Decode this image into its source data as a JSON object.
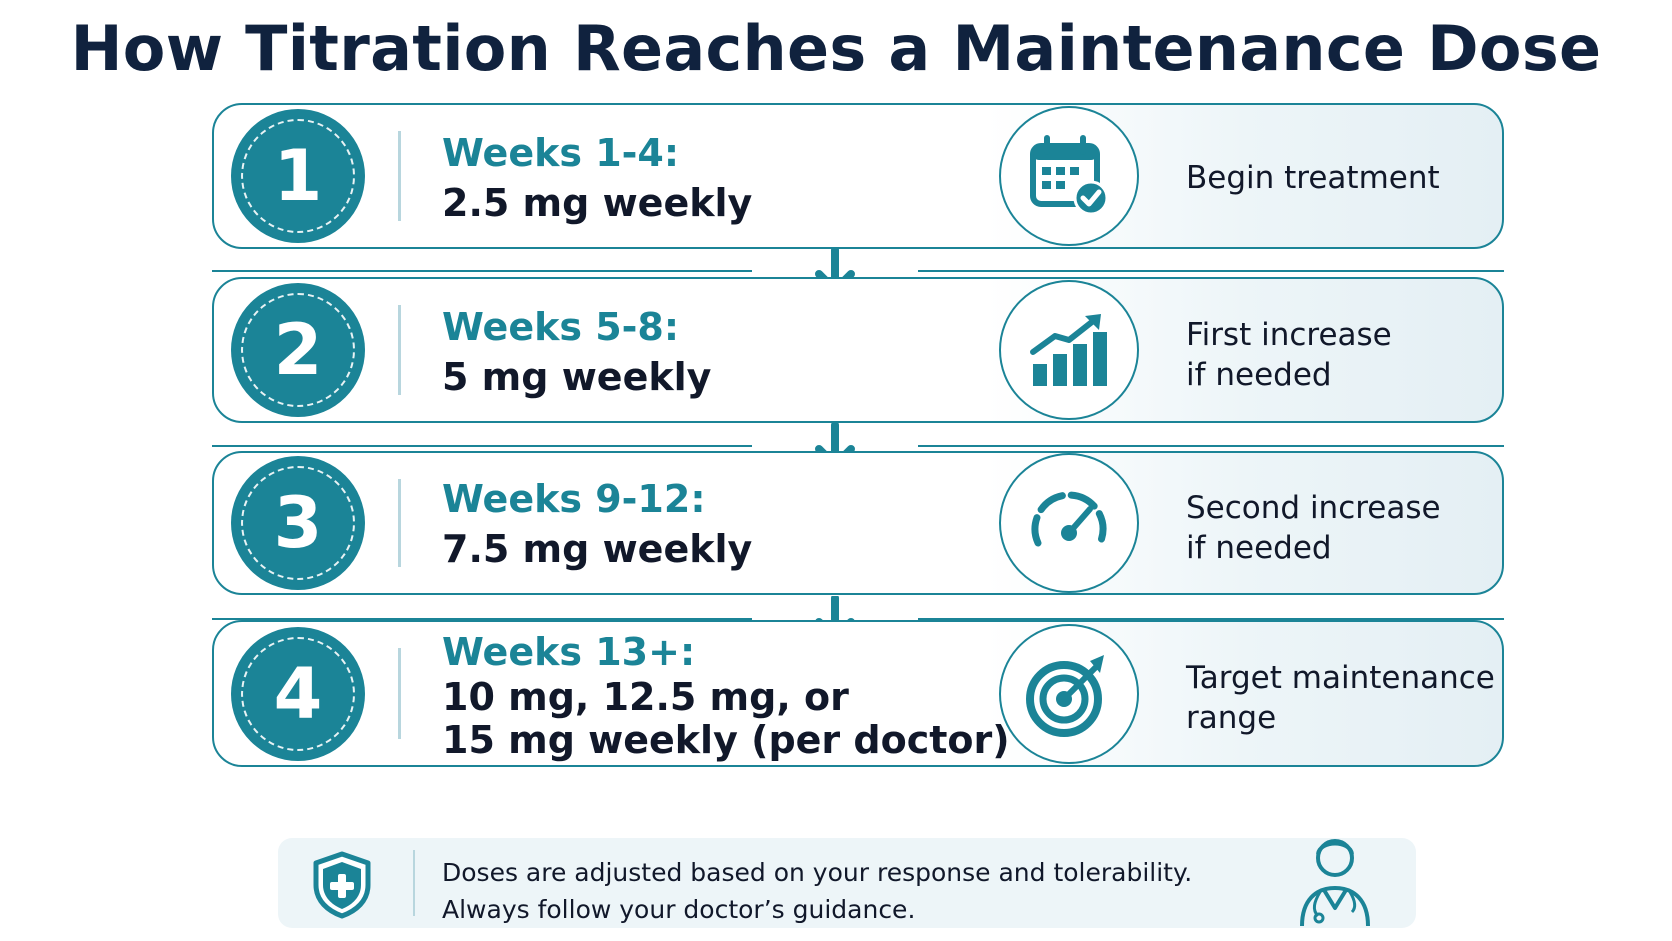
{
  "title": "How Titration Reaches a Maintenance Dose",
  "accent_color": "#1b8497",
  "text_color": "#11182a",
  "steps": [
    {
      "number": "1",
      "weeks": "Weeks 1-4:",
      "dose_lines": [
        "2.5 mg weekly"
      ],
      "icon": "calendar-check-icon",
      "description": "Begin treatment"
    },
    {
      "number": "2",
      "weeks": "Weeks 5-8:",
      "dose_lines": [
        "5 mg weekly"
      ],
      "icon": "growth-chart-icon",
      "description": "First increase\nif needed"
    },
    {
      "number": "3",
      "weeks": "Weeks 9-12:",
      "dose_lines": [
        "7.5 mg weekly"
      ],
      "icon": "speedometer-icon",
      "description": "Second increase\nif needed"
    },
    {
      "number": "4",
      "weeks": "Weeks 13+:",
      "dose_lines": [
        "10 mg, 12.5 mg, or",
        "15 mg weekly (per doctor)"
      ],
      "icon": "target-icon",
      "description": "Target maintenance\nrange"
    }
  ],
  "note": {
    "icon_left": "shield-plus-icon",
    "lines": [
      "Doses are adjusted based on your response and tolerability.",
      "Always follow your doctor’s guidance."
    ],
    "icon_right": "doctor-icon"
  }
}
